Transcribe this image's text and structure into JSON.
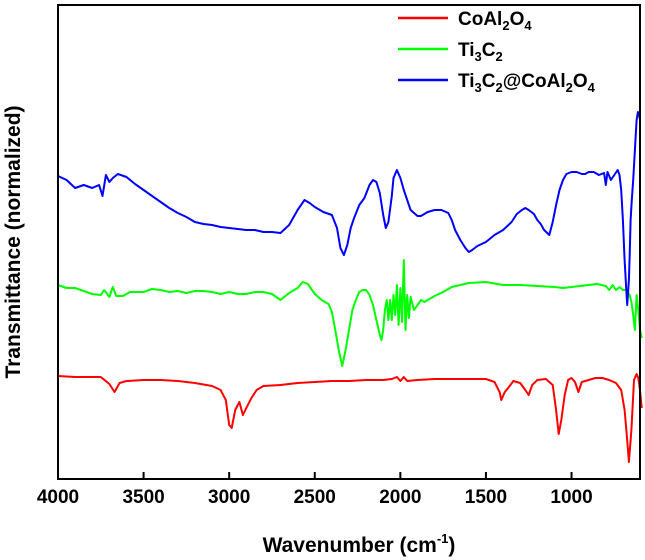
{
  "chart_data": {
    "type": "line",
    "title": "",
    "xlabel": {
      "main": "Wavenumber (cm",
      "sup": "-1",
      "close": ")"
    },
    "ylabel": "Transmittance (normalized)",
    "xlim": [
      4000,
      600
    ],
    "x_reversed": true,
    "y_ticks_shown": false,
    "grid": false,
    "legend_position": "top-right",
    "x_ticks": [
      "4000",
      "3500",
      "3000",
      "2500",
      "2000",
      "1500",
      "1000"
    ],
    "x_tick_values": [
      4000,
      3500,
      3000,
      2500,
      2000,
      1500,
      1000
    ],
    "series": [
      {
        "name": "CoAl2O4",
        "legend_parts": [
          [
            "CoAl",
            ""
          ],
          [
            "2",
            "sub"
          ],
          [
            "O",
            ""
          ],
          [
            "4",
            "sub"
          ]
        ],
        "color": "#ff0000",
        "points": [
          [
            4000,
            376
          ],
          [
            3900,
            377
          ],
          [
            3750,
            377
          ],
          [
            3700,
            384
          ],
          [
            3670,
            392
          ],
          [
            3640,
            383
          ],
          [
            3600,
            381
          ],
          [
            3500,
            380
          ],
          [
            3400,
            380
          ],
          [
            3300,
            381
          ],
          [
            3200,
            383
          ],
          [
            3100,
            386
          ],
          [
            3050,
            390
          ],
          [
            3020,
            400
          ],
          [
            3000,
            425
          ],
          [
            2985,
            428
          ],
          [
            2965,
            410
          ],
          [
            2940,
            402
          ],
          [
            2920,
            415
          ],
          [
            2900,
            408
          ],
          [
            2870,
            398
          ],
          [
            2840,
            390
          ],
          [
            2800,
            386
          ],
          [
            2700,
            385
          ],
          [
            2600,
            383
          ],
          [
            2500,
            382
          ],
          [
            2400,
            381
          ],
          [
            2300,
            381
          ],
          [
            2200,
            380
          ],
          [
            2100,
            380
          ],
          [
            2050,
            379
          ],
          [
            2020,
            377
          ],
          [
            2000,
            381
          ],
          [
            1980,
            377
          ],
          [
            1960,
            381
          ],
          [
            1900,
            380
          ],
          [
            1800,
            379
          ],
          [
            1700,
            379
          ],
          [
            1600,
            379
          ],
          [
            1500,
            379
          ],
          [
            1450,
            382
          ],
          [
            1420,
            392
          ],
          [
            1410,
            400
          ],
          [
            1390,
            392
          ],
          [
            1370,
            388
          ],
          [
            1340,
            381
          ],
          [
            1300,
            383
          ],
          [
            1270,
            390
          ],
          [
            1250,
            395
          ],
          [
            1230,
            385
          ],
          [
            1200,
            380
          ],
          [
            1150,
            379
          ],
          [
            1110,
            385
          ],
          [
            1090,
            410
          ],
          [
            1075,
            434
          ],
          [
            1060,
            420
          ],
          [
            1040,
            395
          ],
          [
            1020,
            380
          ],
          [
            1000,
            378
          ],
          [
            980,
            382
          ],
          [
            960,
            392
          ],
          [
            940,
            382
          ],
          [
            900,
            380
          ],
          [
            860,
            378
          ],
          [
            820,
            378
          ],
          [
            780,
            380
          ],
          [
            740,
            383
          ],
          [
            710,
            390
          ],
          [
            690,
            410
          ],
          [
            675,
            440
          ],
          [
            665,
            462
          ],
          [
            650,
            430
          ],
          [
            635,
            380
          ],
          [
            620,
            374
          ],
          [
            610,
            378
          ],
          [
            600,
            390
          ],
          [
            590,
            408
          ]
        ]
      },
      {
        "name": "Ti3C2",
        "legend_parts": [
          [
            "Ti",
            ""
          ],
          [
            "3",
            "sub"
          ],
          [
            "C",
            ""
          ],
          [
            "2",
            "sub"
          ]
        ],
        "color": "#00ff00",
        "points": [
          [
            4000,
            285
          ],
          [
            3950,
            288
          ],
          [
            3900,
            288
          ],
          [
            3850,
            291
          ],
          [
            3800,
            294
          ],
          [
            3750,
            295
          ],
          [
            3730,
            290
          ],
          [
            3700,
            297
          ],
          [
            3680,
            287
          ],
          [
            3660,
            296
          ],
          [
            3620,
            296
          ],
          [
            3580,
            292
          ],
          [
            3500,
            292
          ],
          [
            3450,
            289
          ],
          [
            3400,
            290
          ],
          [
            3350,
            292
          ],
          [
            3300,
            291
          ],
          [
            3250,
            293
          ],
          [
            3200,
            291
          ],
          [
            3150,
            291
          ],
          [
            3100,
            292
          ],
          [
            3050,
            294
          ],
          [
            3000,
            292
          ],
          [
            2950,
            294
          ],
          [
            2900,
            294
          ],
          [
            2850,
            292
          ],
          [
            2800,
            292
          ],
          [
            2750,
            294
          ],
          [
            2700,
            300
          ],
          [
            2650,
            293
          ],
          [
            2600,
            288
          ],
          [
            2570,
            282
          ],
          [
            2540,
            284
          ],
          [
            2500,
            294
          ],
          [
            2460,
            300
          ],
          [
            2420,
            304
          ],
          [
            2400,
            312
          ],
          [
            2380,
            330
          ],
          [
            2360,
            350
          ],
          [
            2340,
            366
          ],
          [
            2320,
            350
          ],
          [
            2300,
            330
          ],
          [
            2280,
            310
          ],
          [
            2260,
            300
          ],
          [
            2240,
            292
          ],
          [
            2220,
            290
          ],
          [
            2200,
            290
          ],
          [
            2180,
            295
          ],
          [
            2160,
            305
          ],
          [
            2140,
            320
          ],
          [
            2120,
            335
          ],
          [
            2110,
            340
          ],
          [
            2100,
            330
          ],
          [
            2090,
            310
          ],
          [
            2080,
            300
          ],
          [
            2070,
            320
          ],
          [
            2060,
            300
          ],
          [
            2050,
            320
          ],
          [
            2040,
            295
          ],
          [
            2030,
            315
          ],
          [
            2020,
            285
          ],
          [
            2010,
            325
          ],
          [
            2000,
            288
          ],
          [
            1990,
            322
          ],
          [
            1980,
            260
          ],
          [
            1970,
            330
          ],
          [
            1960,
            295
          ],
          [
            1950,
            318
          ],
          [
            1940,
            297
          ],
          [
            1920,
            310
          ],
          [
            1900,
            305
          ],
          [
            1880,
            300
          ],
          [
            1860,
            302
          ],
          [
            1800,
            296
          ],
          [
            1750,
            292
          ],
          [
            1700,
            287
          ],
          [
            1600,
            283
          ],
          [
            1500,
            282
          ],
          [
            1400,
            285
          ],
          [
            1300,
            285
          ],
          [
            1200,
            286
          ],
          [
            1100,
            287
          ],
          [
            1050,
            288
          ],
          [
            1000,
            287
          ],
          [
            950,
            286
          ],
          [
            900,
            285
          ],
          [
            850,
            284
          ],
          [
            800,
            286
          ],
          [
            780,
            290
          ],
          [
            760,
            285
          ],
          [
            740,
            290
          ],
          [
            720,
            287
          ],
          [
            700,
            290
          ],
          [
            680,
            290
          ],
          [
            660,
            295
          ],
          [
            650,
            302
          ],
          [
            640,
            315
          ],
          [
            630,
            330
          ],
          [
            620,
            295
          ],
          [
            610,
            310
          ],
          [
            600,
            330
          ],
          [
            590,
            338
          ]
        ]
      },
      {
        "name": "Ti3C2@CoAl2O4",
        "legend_parts": [
          [
            "Ti",
            ""
          ],
          [
            "3",
            "sub"
          ],
          [
            "C",
            ""
          ],
          [
            "2",
            "sub"
          ],
          [
            "@CoAl",
            ""
          ],
          [
            "2",
            "sub"
          ],
          [
            "O",
            ""
          ],
          [
            "4",
            "sub"
          ]
        ],
        "color": "#0000ff",
        "points": [
          [
            4000,
            176
          ],
          [
            3950,
            180
          ],
          [
            3900,
            188
          ],
          [
            3850,
            185
          ],
          [
            3800,
            188
          ],
          [
            3760,
            185
          ],
          [
            3740,
            196
          ],
          [
            3720,
            175
          ],
          [
            3700,
            182
          ],
          [
            3680,
            178
          ],
          [
            3650,
            174
          ],
          [
            3600,
            177
          ],
          [
            3550,
            184
          ],
          [
            3500,
            190
          ],
          [
            3450,
            196
          ],
          [
            3400,
            202
          ],
          [
            3350,
            208
          ],
          [
            3300,
            213
          ],
          [
            3250,
            217
          ],
          [
            3200,
            222
          ],
          [
            3150,
            224
          ],
          [
            3100,
            225
          ],
          [
            3050,
            227
          ],
          [
            3000,
            228
          ],
          [
            2950,
            229
          ],
          [
            2900,
            230
          ],
          [
            2850,
            230
          ],
          [
            2800,
            232
          ],
          [
            2750,
            232
          ],
          [
            2700,
            233
          ],
          [
            2650,
            225
          ],
          [
            2600,
            210
          ],
          [
            2560,
            200
          ],
          [
            2530,
            203
          ],
          [
            2500,
            207
          ],
          [
            2450,
            212
          ],
          [
            2400,
            215
          ],
          [
            2370,
            228
          ],
          [
            2350,
            248
          ],
          [
            2330,
            255
          ],
          [
            2310,
            245
          ],
          [
            2290,
            228
          ],
          [
            2270,
            218
          ],
          [
            2240,
            205
          ],
          [
            2210,
            198
          ],
          [
            2180,
            185
          ],
          [
            2160,
            180
          ],
          [
            2140,
            182
          ],
          [
            2120,
            193
          ],
          [
            2100,
            215
          ],
          [
            2085,
            228
          ],
          [
            2070,
            222
          ],
          [
            2050,
            196
          ],
          [
            2040,
            178
          ],
          [
            2020,
            170
          ],
          [
            2000,
            178
          ],
          [
            1980,
            190
          ],
          [
            1960,
            200
          ],
          [
            1940,
            210
          ],
          [
            1920,
            213
          ],
          [
            1900,
            216
          ],
          [
            1880,
            216
          ],
          [
            1860,
            214
          ],
          [
            1840,
            212
          ],
          [
            1800,
            210
          ],
          [
            1760,
            210
          ],
          [
            1720,
            213
          ],
          [
            1700,
            220
          ],
          [
            1680,
            230
          ],
          [
            1650,
            240
          ],
          [
            1620,
            248
          ],
          [
            1600,
            252
          ],
          [
            1580,
            250
          ],
          [
            1550,
            246
          ],
          [
            1500,
            242
          ],
          [
            1450,
            235
          ],
          [
            1400,
            230
          ],
          [
            1350,
            222
          ],
          [
            1320,
            214
          ],
          [
            1290,
            210
          ],
          [
            1270,
            208
          ],
          [
            1250,
            210
          ],
          [
            1220,
            214
          ],
          [
            1200,
            220
          ],
          [
            1180,
            224
          ],
          [
            1160,
            230
          ],
          [
            1130,
            235
          ],
          [
            1110,
            222
          ],
          [
            1090,
            205
          ],
          [
            1070,
            190
          ],
          [
            1050,
            180
          ],
          [
            1030,
            174
          ],
          [
            1000,
            172
          ],
          [
            970,
            172
          ],
          [
            940,
            174
          ],
          [
            920,
            174
          ],
          [
            900,
            172
          ],
          [
            870,
            172
          ],
          [
            840,
            175
          ],
          [
            810,
            173
          ],
          [
            800,
            185
          ],
          [
            790,
            172
          ],
          [
            770,
            180
          ],
          [
            750,
            175
          ],
          [
            730,
            170
          ],
          [
            720,
            175
          ],
          [
            710,
            190
          ],
          [
            700,
            220
          ],
          [
            690,
            260
          ],
          [
            680,
            290
          ],
          [
            675,
            305
          ],
          [
            665,
            280
          ],
          [
            660,
            255
          ],
          [
            655,
            220
          ],
          [
            648,
            200
          ],
          [
            640,
            180
          ],
          [
            630,
            150
          ],
          [
            620,
            120
          ],
          [
            612,
            112
          ],
          [
            605,
            115
          ],
          [
            600,
            120
          ]
        ]
      }
    ]
  }
}
